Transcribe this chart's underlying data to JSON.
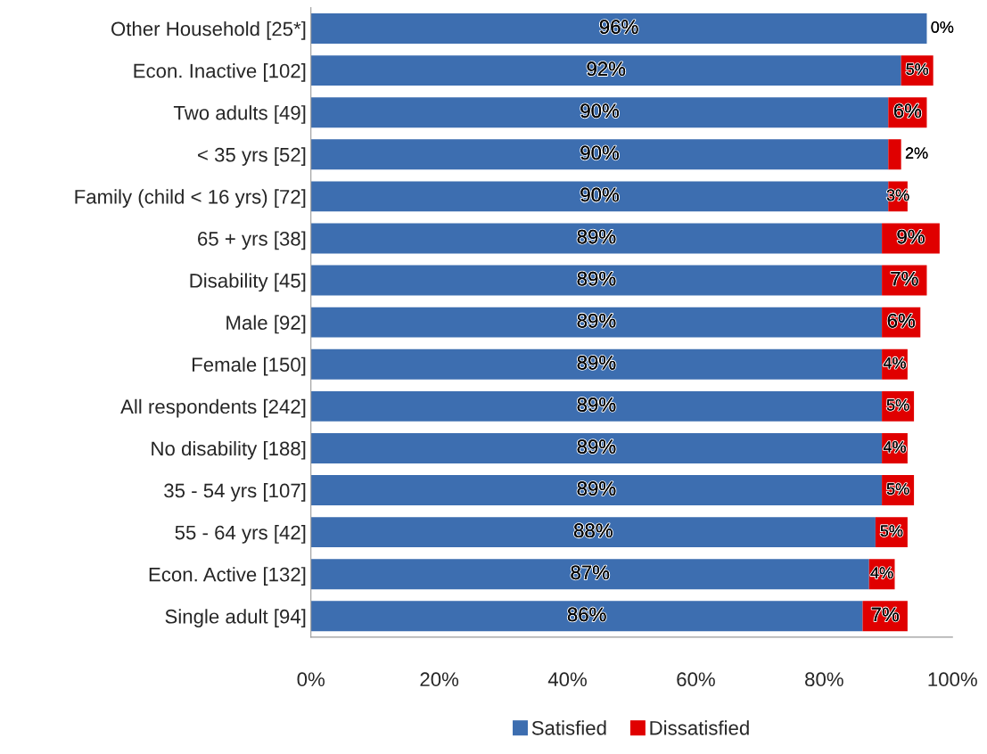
{
  "chart_data": {
    "type": "bar",
    "orientation": "horizontal",
    "stacked": true,
    "legend": "bottom",
    "grid": false,
    "categories": [
      "Other Household [25*]",
      "Econ. Inactive [102]",
      "Two adults [49]",
      "< 35 yrs [52]",
      "Family (child < 16 yrs) [72]",
      "65 + yrs [38]",
      "Disability [45]",
      "Male [92]",
      "Female [150]",
      "All respondents [242]",
      "No disability [188]",
      "35 - 54 yrs [107]",
      "55 - 64 yrs [42]",
      "Econ. Active [132]",
      "Single adult [94]"
    ],
    "series": [
      {
        "name": "Satisfied",
        "color": "#3d6eb0",
        "values": [
          96,
          92,
          90,
          90,
          90,
          89,
          89,
          89,
          89,
          89,
          89,
          89,
          88,
          87,
          86
        ],
        "value_labels": [
          "96%",
          "92%",
          "90%",
          "90%",
          "90%",
          "89%",
          "89%",
          "89%",
          "89%",
          "89%",
          "89%",
          "89%",
          "88%",
          "87%",
          "86%"
        ]
      },
      {
        "name": "Dissatisfied",
        "color": "#e00000",
        "values": [
          0,
          5,
          6,
          2,
          3,
          9,
          7,
          6,
          4,
          5,
          4,
          5,
          5,
          4,
          7
        ],
        "value_labels": [
          "0%",
          "5%",
          "6%",
          "2%",
          "3%",
          "9%",
          "7%",
          "6%",
          "4%",
          "5%",
          "4%",
          "5%",
          "5%",
          "4%",
          "7%"
        ]
      }
    ],
    "xlim": [
      0,
      100
    ],
    "xticks": [
      {
        "value": 0,
        "label": "0%"
      },
      {
        "value": 20,
        "label": "20%"
      },
      {
        "value": 40,
        "label": "40%"
      },
      {
        "value": 60,
        "label": "60%"
      },
      {
        "value": 80,
        "label": "80%"
      },
      {
        "value": 100,
        "label": "100%"
      }
    ]
  }
}
